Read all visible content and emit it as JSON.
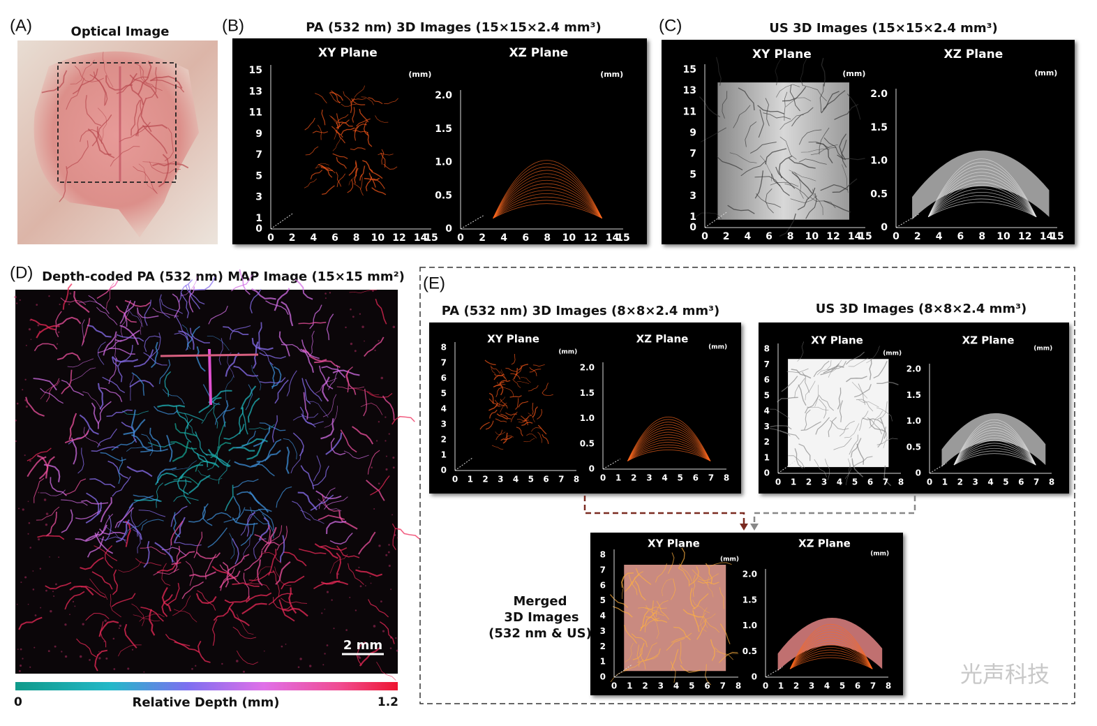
{
  "panel_a": {
    "label": "(A)",
    "title": "Optical Image"
  },
  "panel_b": {
    "label": "(B)",
    "title": "PA (532 nm) 3D Images  (15×15×2.4 mm³)",
    "plots": [
      {
        "title": "XY Plane",
        "unit": "(mm)",
        "yticks": [
          "15",
          "13",
          "11",
          "9",
          "7",
          "5",
          "3",
          "1",
          "0"
        ],
        "xticks": [
          "0",
          "2",
          "4",
          "6",
          "8",
          "10",
          "12",
          "14",
          "15"
        ]
      },
      {
        "title": "XZ Plane",
        "unit": "(mm)",
        "yticks": [
          "2.0",
          "1.5",
          "1.0",
          "0.5",
          "0"
        ],
        "xticks": [
          "0",
          "2",
          "4",
          "6",
          "8",
          "10",
          "12",
          "14",
          "15"
        ]
      }
    ]
  },
  "panel_c": {
    "label": "(C)",
    "title": "US 3D Images  (15×15×2.4 mm³)",
    "plots": [
      {
        "title": "XY Plane",
        "unit": "(mm)",
        "yticks": [
          "15",
          "13",
          "11",
          "9",
          "7",
          "5",
          "3",
          "1",
          "0"
        ],
        "xticks": [
          "0",
          "2",
          "4",
          "6",
          "8",
          "10",
          "12",
          "14",
          "15"
        ]
      },
      {
        "title": "XZ Plane",
        "unit": "(mm)",
        "yticks": [
          "2.0",
          "1.5",
          "1.0",
          "0.5",
          "0"
        ],
        "xticks": [
          "0",
          "2",
          "4",
          "6",
          "8",
          "10",
          "12",
          "14",
          "15"
        ]
      }
    ]
  },
  "panel_d": {
    "label": "(D)",
    "title": "Depth-coded PA (532 nm) MAP Image  (15×15 mm²)",
    "scale_bar": "2 mm",
    "colorbar": {
      "min": "0",
      "label": "Relative Depth (mm)",
      "max": "1.2"
    }
  },
  "panel_e": {
    "label": "(E)",
    "groups": [
      {
        "title": "PA (532 nm) 3D Images  (8×8×2.4 mm³)",
        "plots": [
          {
            "title": "XY Plane",
            "unit": "(mm)",
            "yticks": [
              "8",
              "7",
              "6",
              "5",
              "4",
              "3",
              "2",
              "1",
              "0"
            ],
            "xticks": [
              "0",
              "1",
              "2",
              "3",
              "4",
              "5",
              "6",
              "7",
              "8"
            ]
          },
          {
            "title": "XZ Plane",
            "unit": "(mm)",
            "yticks": [
              "2.0",
              "1.5",
              "1.0",
              "0.5",
              "0"
            ],
            "xticks": [
              "0",
              "1",
              "2",
              "3",
              "4",
              "5",
              "6",
              "7",
              "8"
            ]
          }
        ]
      },
      {
        "title": "US 3D Images  (8×8×2.4 mm³)",
        "plots": [
          {
            "title": "XY Plane",
            "unit": "(mm)",
            "yticks": [
              "8",
              "7",
              "6",
              "5",
              "4",
              "3",
              "2",
              "1",
              "0"
            ],
            "xticks": [
              "0",
              "1",
              "2",
              "3",
              "4",
              "5",
              "6",
              "7",
              "8"
            ]
          },
          {
            "title": "XZ Plane",
            "unit": "(mm)",
            "yticks": [
              "2.0",
              "1.5",
              "1.0",
              "0.5",
              "0"
            ],
            "xticks": [
              "0",
              "1",
              "2",
              "3",
              "4",
              "5",
              "6",
              "7",
              "8"
            ]
          }
        ]
      }
    ],
    "merged": {
      "caption": [
        "Merged",
        "3D Images",
        "(532 nm & US)"
      ],
      "plots": [
        {
          "title": "XY Plane",
          "unit": "(mm)",
          "yticks": [
            "8",
            "7",
            "6",
            "5",
            "4",
            "3",
            "2",
            "1",
            "0"
          ],
          "xticks": [
            "0",
            "1",
            "2",
            "3",
            "4",
            "5",
            "6",
            "7",
            "8"
          ]
        },
        {
          "title": "XZ Plane",
          "unit": "(mm)",
          "yticks": [
            "2.0",
            "1.5",
            "1.0",
            "0.5",
            "0"
          ],
          "xticks": [
            "0",
            "1",
            "2",
            "3",
            "4",
            "5",
            "6",
            "7",
            "8"
          ]
        }
      ]
    }
  },
  "watermark": "光声科技"
}
